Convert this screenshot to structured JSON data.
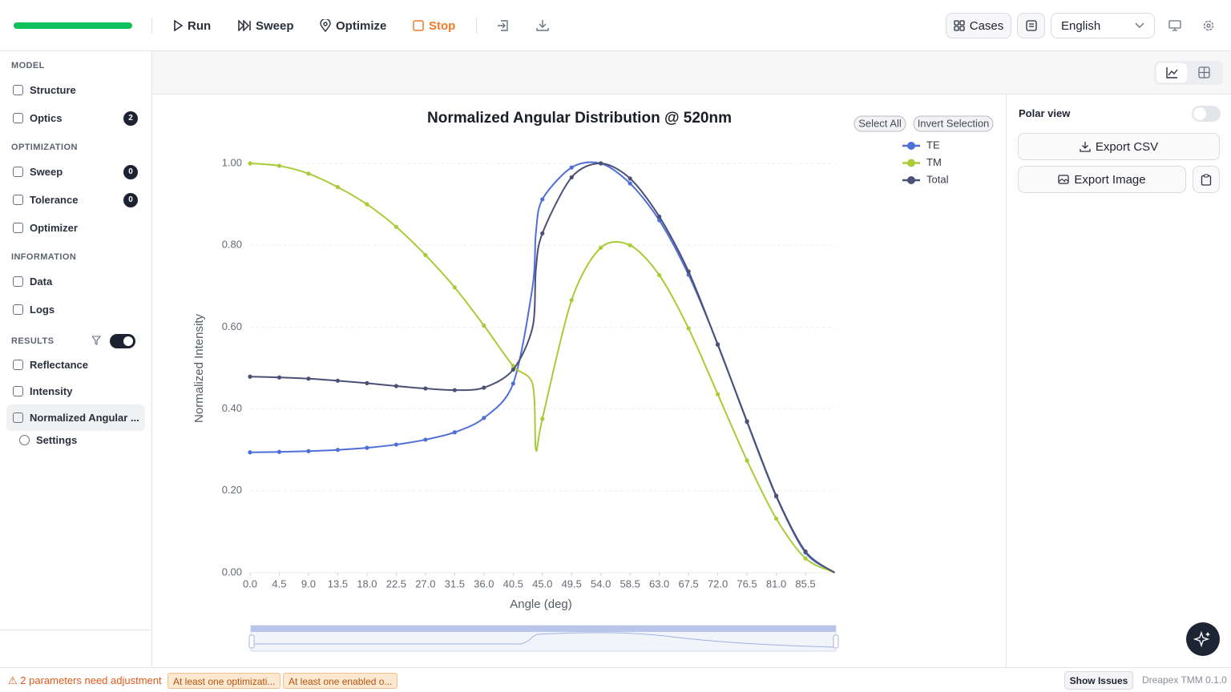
{
  "toolbar": {
    "run": "Run",
    "sweep": "Sweep",
    "optimize": "Optimize",
    "stop": "Stop",
    "cases": "Cases",
    "language": "English"
  },
  "sidebar": {
    "sections": [
      {
        "title": "MODEL",
        "items": [
          {
            "label": "Structure"
          },
          {
            "label": "Optics",
            "badge": 2
          }
        ]
      },
      {
        "title": "OPTIMIZATION",
        "items": [
          {
            "label": "Sweep",
            "badge": 0
          },
          {
            "label": "Tolerance",
            "badge": 0
          },
          {
            "label": "Optimizer"
          }
        ]
      },
      {
        "title": "INFORMATION",
        "items": [
          {
            "label": "Data"
          },
          {
            "label": "Logs"
          }
        ]
      },
      {
        "title": "RESULTS",
        "items": [
          {
            "label": "Reflectance"
          },
          {
            "label": "Intensity"
          },
          {
            "label": "Normalized Angular ..."
          }
        ]
      }
    ],
    "settings": "Settings"
  },
  "panel": {
    "polar_view": "Polar view",
    "export_csv": "Export CSV",
    "export_image": "Export Image"
  },
  "legend_controls": {
    "select_all": "Select All",
    "invert_selection": "Invert Selection"
  },
  "status": {
    "warning": "2 parameters need adjustment",
    "tags": [
      "At least one optimizati...",
      "At least one enabled o..."
    ],
    "show_issues": "Show Issues",
    "version": "Dreapex TMM 0.1.0"
  },
  "chart_data": {
    "type": "line",
    "title": "Normalized Angular Distribution @ 520nm",
    "x_label": "Angle (deg)",
    "y_label": "Normalized Intensity",
    "x": [
      0,
      4.5,
      9,
      13.5,
      18,
      22.5,
      27,
      31.5,
      36,
      40.5,
      43.5,
      44,
      45,
      49.5,
      54,
      58.5,
      63,
      67.5,
      72,
      76.5,
      81,
      85.5,
      90
    ],
    "series": [
      {
        "name": "TE",
        "color": "#4f6fd8",
        "values": [
          0.294,
          0.295,
          0.297,
          0.3,
          0.305,
          0.313,
          0.325,
          0.343,
          0.378,
          0.462,
          0.7,
          0.83,
          0.912,
          0.99,
          1.0,
          0.951,
          0.861,
          0.728,
          0.558,
          0.368,
          0.186,
          0.049,
          0
        ]
      },
      {
        "name": "TM",
        "color": "#a9cb38",
        "values": [
          1.0,
          0.994,
          0.975,
          0.942,
          0.9,
          0.845,
          0.776,
          0.697,
          0.604,
          0.505,
          0.46,
          0.3,
          0.376,
          0.666,
          0.794,
          0.8,
          0.727,
          0.597,
          0.436,
          0.274,
          0.132,
          0.035,
          0
        ]
      },
      {
        "name": "Total",
        "color": "#4b5075",
        "values": [
          0.479,
          0.477,
          0.474,
          0.469,
          0.463,
          0.456,
          0.45,
          0.446,
          0.452,
          0.496,
          0.6,
          0.74,
          0.829,
          0.966,
          1.0,
          0.963,
          0.87,
          0.736,
          0.557,
          0.37,
          0.188,
          0.052,
          0
        ]
      }
    ],
    "xlim": [
      0,
      90
    ],
    "ylim": [
      0,
      1
    ],
    "xticks": [
      {
        "value": 0,
        "label": "0.0"
      },
      4.5,
      {
        "value": 9,
        "label": "9.0"
      },
      13.5,
      {
        "value": 18,
        "label": "18.0"
      },
      22.5,
      {
        "value": 27,
        "label": "27.0"
      },
      31.5,
      {
        "value": 36,
        "label": "36.0"
      },
      40.5,
      {
        "value": 45,
        "label": "45.0"
      },
      49.5,
      {
        "value": 54,
        "label": "54.0"
      },
      58.5,
      {
        "value": 63,
        "label": "63.0"
      },
      67.5,
      {
        "value": 72,
        "label": "72.0"
      },
      76.5,
      {
        "value": 81,
        "label": "81.0"
      },
      85.5
    ],
    "yticks": [
      {
        "value": 0,
        "label": "0.00"
      },
      {
        "value": 0.2,
        "label": "0.20"
      },
      {
        "value": 0.4,
        "label": "0.40"
      },
      {
        "value": 0.6,
        "label": "0.60"
      },
      {
        "value": 0.8,
        "label": "0.80"
      },
      {
        "value": 1,
        "label": "1.00"
      }
    ],
    "grid": true,
    "legend": "top-right"
  }
}
